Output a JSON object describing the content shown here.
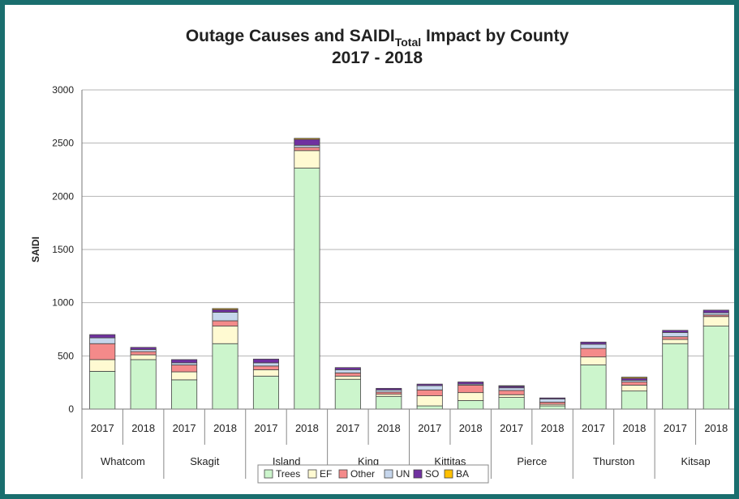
{
  "chart_data": {
    "type": "bar",
    "stacked": true,
    "title": {
      "prefix": "Outage Causes and SAIDI",
      "subscript": "Total",
      "suffix": " Impact by County",
      "line2": "2017 - 2018"
    },
    "ylabel": "SAIDI",
    "ylim": [
      0,
      3000
    ],
    "yticks": [
      0,
      500,
      1000,
      1500,
      2000,
      2500,
      3000
    ],
    "grid": true,
    "legend_position": "bottom",
    "groups": [
      "Whatcom",
      "Skagit",
      "Island",
      "King",
      "Kittitas",
      "Pierce",
      "Thurston",
      "Kitsap"
    ],
    "years": [
      "2017",
      "2018"
    ],
    "categories": [
      "Whatcom 2017",
      "Whatcom 2018",
      "Skagit 2017",
      "Skagit 2018",
      "Island 2017",
      "Island 2018",
      "King 2017",
      "King 2018",
      "Kittitas 2017",
      "Kittitas 2018",
      "Pierce 2017",
      "Pierce 2018",
      "Thurston 2017",
      "Thurston 2018",
      "Kitsap 2017",
      "Kitsap 2018"
    ],
    "series": [
      {
        "name": "Trees",
        "color": "#ccf5cc",
        "values": [
          355,
          465,
          275,
          615,
          310,
          2265,
          280,
          120,
          30,
          80,
          110,
          30,
          415,
          170,
          615,
          780
        ]
      },
      {
        "name": "EF",
        "color": "#fffad2",
        "values": [
          110,
          45,
          75,
          165,
          60,
          165,
          30,
          20,
          95,
          75,
          25,
          15,
          75,
          55,
          40,
          90
        ]
      },
      {
        "name": "Other",
        "color": "#f48a8a",
        "values": [
          150,
          30,
          65,
          50,
          35,
          30,
          30,
          20,
          55,
          70,
          40,
          20,
          80,
          30,
          25,
          15
        ]
      },
      {
        "name": "UN",
        "color": "#c6d6ec",
        "values": [
          55,
          20,
          20,
          80,
          30,
          20,
          30,
          20,
          40,
          10,
          25,
          30,
          40,
          15,
          40,
          20
        ]
      },
      {
        "name": "SO",
        "color": "#7030a0",
        "values": [
          30,
          20,
          30,
          25,
          35,
          55,
          20,
          15,
          15,
          20,
          15,
          10,
          20,
          20,
          20,
          25
        ]
      },
      {
        "name": "BA",
        "color": "#ffc000",
        "values": [
          0,
          0,
          0,
          10,
          0,
          10,
          0,
          0,
          0,
          0,
          5,
          0,
          0,
          10,
          0,
          0
        ]
      }
    ]
  }
}
